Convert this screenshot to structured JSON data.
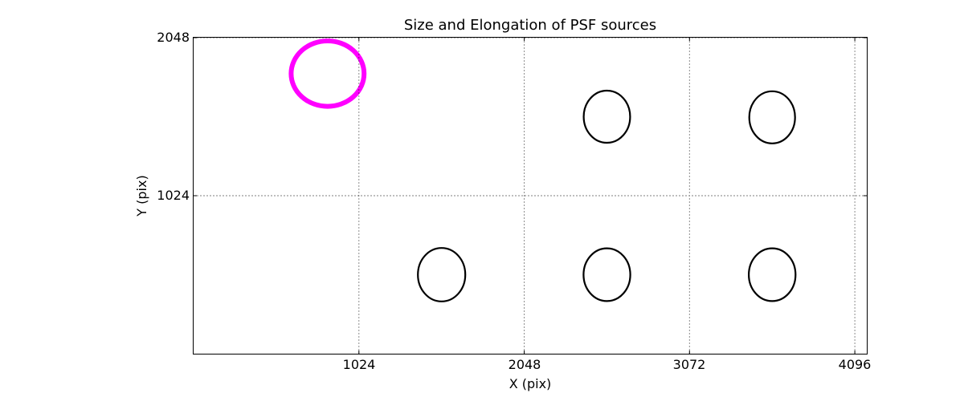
{
  "chart_data": {
    "type": "scatter",
    "title": "Size and Elongation of PSF sources",
    "xlabel": "X (pix)",
    "ylabel": "Y (pix)",
    "xlim": [
      0,
      4170
    ],
    "ylim": [
      0,
      2048
    ],
    "xticks": [
      1024,
      2048,
      3072,
      4096
    ],
    "yticks": [
      1024,
      2048
    ],
    "grid": {
      "style": "dotted",
      "color": "#000000",
      "x_positions": [
        1024,
        2048,
        3072,
        4096
      ],
      "y_positions": [
        1024,
        2048
      ]
    },
    "legend": "none",
    "colors": {
      "normal_source": "#000000",
      "highlighted_source": "#FF00FF",
      "axes": "#000000",
      "background": "#FFFFFF"
    },
    "ellipses": [
      {
        "x": 830,
        "y": 1815,
        "rx": 226,
        "ry": 212,
        "color": "#FF00FF",
        "linewidth": 6,
        "role": "highlighted"
      },
      {
        "x": 2560,
        "y": 1536,
        "rx": 144,
        "ry": 169,
        "color": "#000000",
        "linewidth": 2.2,
        "role": "normal"
      },
      {
        "x": 3584,
        "y": 1532,
        "rx": 142,
        "ry": 169,
        "color": "#000000",
        "linewidth": 2.2,
        "role": "normal"
      },
      {
        "x": 1536,
        "y": 512,
        "rx": 147,
        "ry": 173,
        "color": "#000000",
        "linewidth": 2.2,
        "role": "normal"
      },
      {
        "x": 2560,
        "y": 512,
        "rx": 145,
        "ry": 171,
        "color": "#000000",
        "linewidth": 2.2,
        "role": "normal"
      },
      {
        "x": 3584,
        "y": 512,
        "rx": 145,
        "ry": 171,
        "color": "#000000",
        "linewidth": 2.2,
        "role": "normal"
      }
    ]
  }
}
